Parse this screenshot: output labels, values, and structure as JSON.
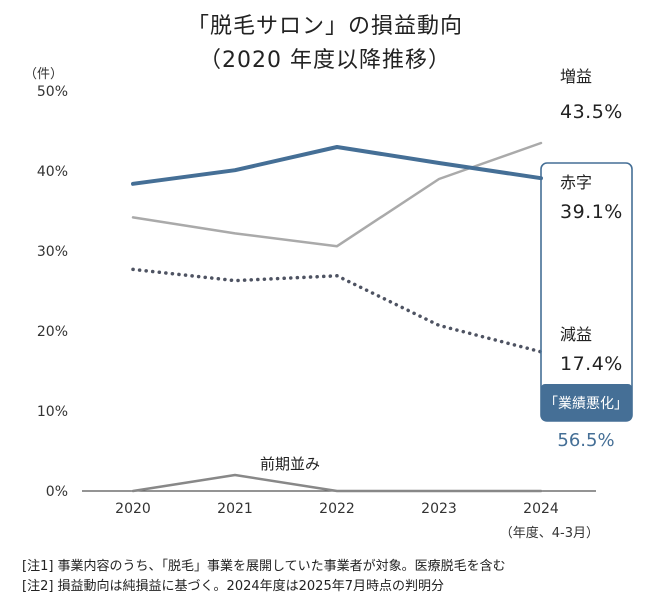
{
  "title_line1": "「脱毛サロン」の損益動向",
  "title_line2": "（2020 年度以降推移）",
  "notes": [
    "[注1]  事業内容のうち、「脱毛」事業を展開していた事業者が対象。医療脱毛を含む",
    "[注2]  損益動向は純損益に基づく。2024年度は2025年7月時点の判明分"
  ],
  "chart_data": {
    "type": "line",
    "ylabel": "（件）",
    "xlabel": "（年度、4-3月）",
    "x": [
      "2020",
      "2021",
      "2022",
      "2023",
      "2024"
    ],
    "ylim": [
      0,
      50
    ],
    "yticks": [
      0,
      10,
      20,
      30,
      40,
      50
    ],
    "ytick_labels": [
      "0%",
      "10%",
      "20%",
      "30%",
      "40%",
      "50%"
    ],
    "grid": false,
    "series": [
      {
        "name": "増益",
        "values": [
          34.2,
          32.2,
          30.6,
          39.0,
          43.5
        ],
        "color": "#aaaaaa",
        "style": "solid"
      },
      {
        "name": "赤字",
        "values": [
          38.4,
          40.1,
          43.0,
          41.0,
          39.1
        ],
        "color": "#456f96",
        "style": "bold"
      },
      {
        "name": "減益",
        "values": [
          27.7,
          26.3,
          26.9,
          20.7,
          17.4
        ],
        "color": "#4e5362",
        "style": "dotted"
      },
      {
        "name": "前期並み",
        "values": [
          0,
          2.0,
          0,
          0,
          0
        ],
        "color": "#888888",
        "style": "solid"
      }
    ],
    "end_labels": {
      "増益": "43.5%",
      "赤字": "39.1%",
      "減益": "17.4%"
    },
    "callout": {
      "label": "「業績悪化」",
      "value": "56.5%",
      "color": "#456f96"
    }
  }
}
